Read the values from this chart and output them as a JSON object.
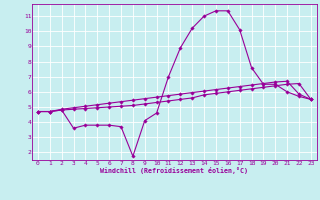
{
  "xlabel": "Windchill (Refroidissement éolien,°C)",
  "bg_color": "#c8eef0",
  "line_color": "#990099",
  "grid_color": "#ffffff",
  "xlim": [
    -0.5,
    23.5
  ],
  "ylim": [
    1.5,
    11.8
  ],
  "xticks": [
    0,
    1,
    2,
    3,
    4,
    5,
    6,
    7,
    8,
    9,
    10,
    11,
    12,
    13,
    14,
    15,
    16,
    17,
    18,
    19,
    20,
    21,
    22,
    23
  ],
  "yticks": [
    2,
    3,
    4,
    5,
    6,
    7,
    8,
    9,
    10,
    11
  ],
  "line1_x": [
    0,
    1,
    2,
    3,
    4,
    5,
    6,
    7,
    8,
    9,
    10,
    11,
    12,
    13,
    14,
    15,
    16,
    17,
    18,
    19,
    20,
    21,
    22,
    23
  ],
  "line1_y": [
    4.7,
    4.7,
    4.8,
    3.6,
    3.8,
    3.8,
    3.8,
    3.7,
    1.75,
    4.1,
    4.6,
    7.0,
    8.9,
    10.2,
    11.0,
    11.35,
    11.35,
    10.1,
    7.6,
    6.5,
    6.5,
    6.0,
    5.7,
    5.5
  ],
  "line2_x": [
    0,
    1,
    2,
    3,
    4,
    5,
    6,
    7,
    8,
    9,
    10,
    11,
    12,
    13,
    14,
    15,
    16,
    17,
    18,
    19,
    20,
    21,
    22,
    23
  ],
  "line2_y": [
    4.7,
    4.7,
    4.8,
    4.85,
    4.9,
    4.95,
    5.0,
    5.05,
    5.1,
    5.2,
    5.3,
    5.4,
    5.5,
    5.6,
    5.8,
    5.9,
    6.0,
    6.1,
    6.2,
    6.3,
    6.4,
    6.5,
    6.55,
    5.5
  ],
  "line3_x": [
    0,
    1,
    2,
    3,
    4,
    5,
    6,
    7,
    8,
    9,
    10,
    11,
    12,
    13,
    14,
    15,
    16,
    17,
    18,
    19,
    20,
    21,
    22,
    23
  ],
  "line3_y": [
    4.7,
    4.7,
    4.85,
    4.95,
    5.05,
    5.15,
    5.25,
    5.35,
    5.45,
    5.55,
    5.65,
    5.75,
    5.85,
    5.95,
    6.05,
    6.15,
    6.25,
    6.35,
    6.45,
    6.55,
    6.65,
    6.7,
    5.85,
    5.5
  ]
}
